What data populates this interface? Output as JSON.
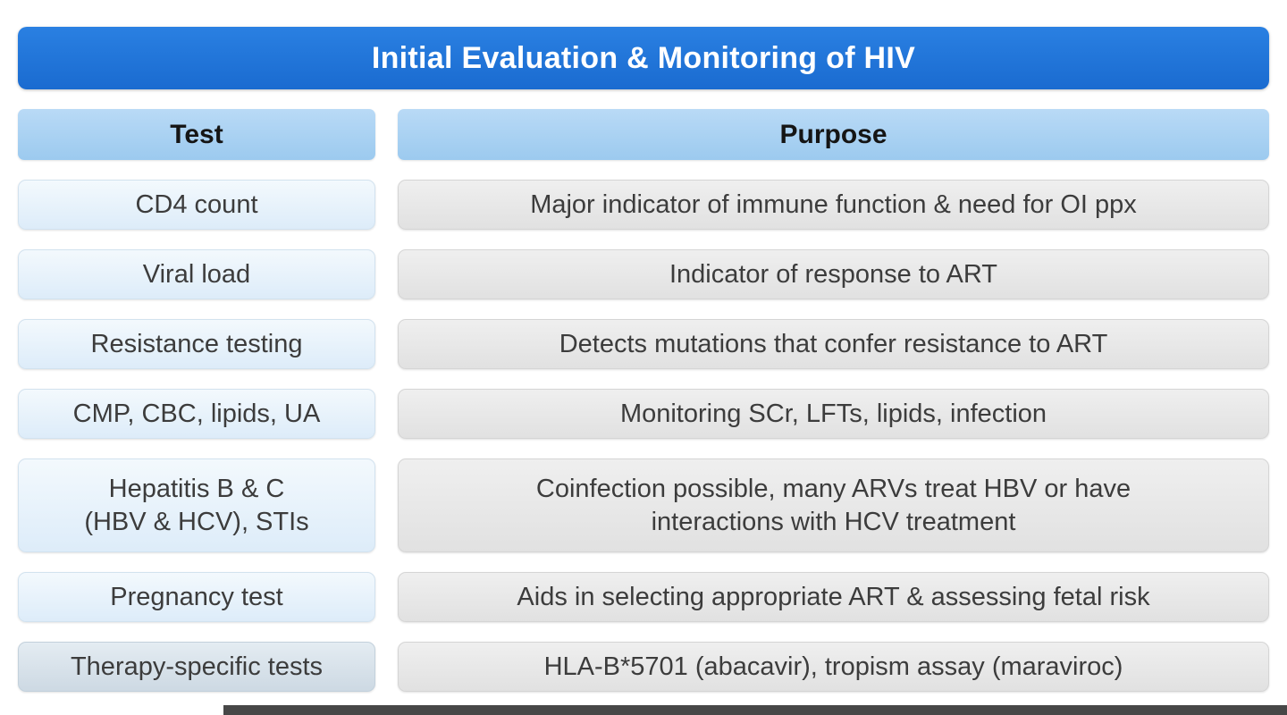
{
  "title": "Initial Evaluation & Monitoring of HIV",
  "columns": {
    "test": "Test",
    "purpose": "Purpose"
  },
  "rows": [
    {
      "test": "CD4 count",
      "purpose": "Major indicator of immune function & need for OI ppx",
      "tall": false,
      "muted": false
    },
    {
      "test": "Viral load",
      "purpose": "Indicator of response to ART",
      "tall": false,
      "muted": false
    },
    {
      "test": "Resistance testing",
      "purpose": "Detects mutations that confer resistance to ART",
      "tall": false,
      "muted": false
    },
    {
      "test": "CMP, CBC, lipids, UA",
      "purpose": "Monitoring SCr, LFTs, lipids, infection",
      "tall": false,
      "muted": false
    },
    {
      "test": "Hepatitis B & C\n(HBV & HCV), STIs",
      "purpose": "Coinfection possible, many ARVs treat HBV or have\ninteractions with HCV treatment",
      "tall": true,
      "muted": false
    },
    {
      "test": "Pregnancy test",
      "purpose": "Aids in selecting appropriate ART & assessing fetal risk",
      "tall": false,
      "muted": false
    },
    {
      "test": "Therapy-specific tests",
      "purpose": "HLA-B*5701 (abacavir), tropism assay (maraviroc)",
      "tall": false,
      "muted": true
    }
  ],
  "colors": {
    "title_bar": "#1c72d6",
    "column_header": "#a9d2f2",
    "test_cell": "#e9f2fb",
    "purpose_cell": "#e6e6e6",
    "muted_test_cell": "#d7e1ea",
    "bottom_bar": "#474747"
  }
}
